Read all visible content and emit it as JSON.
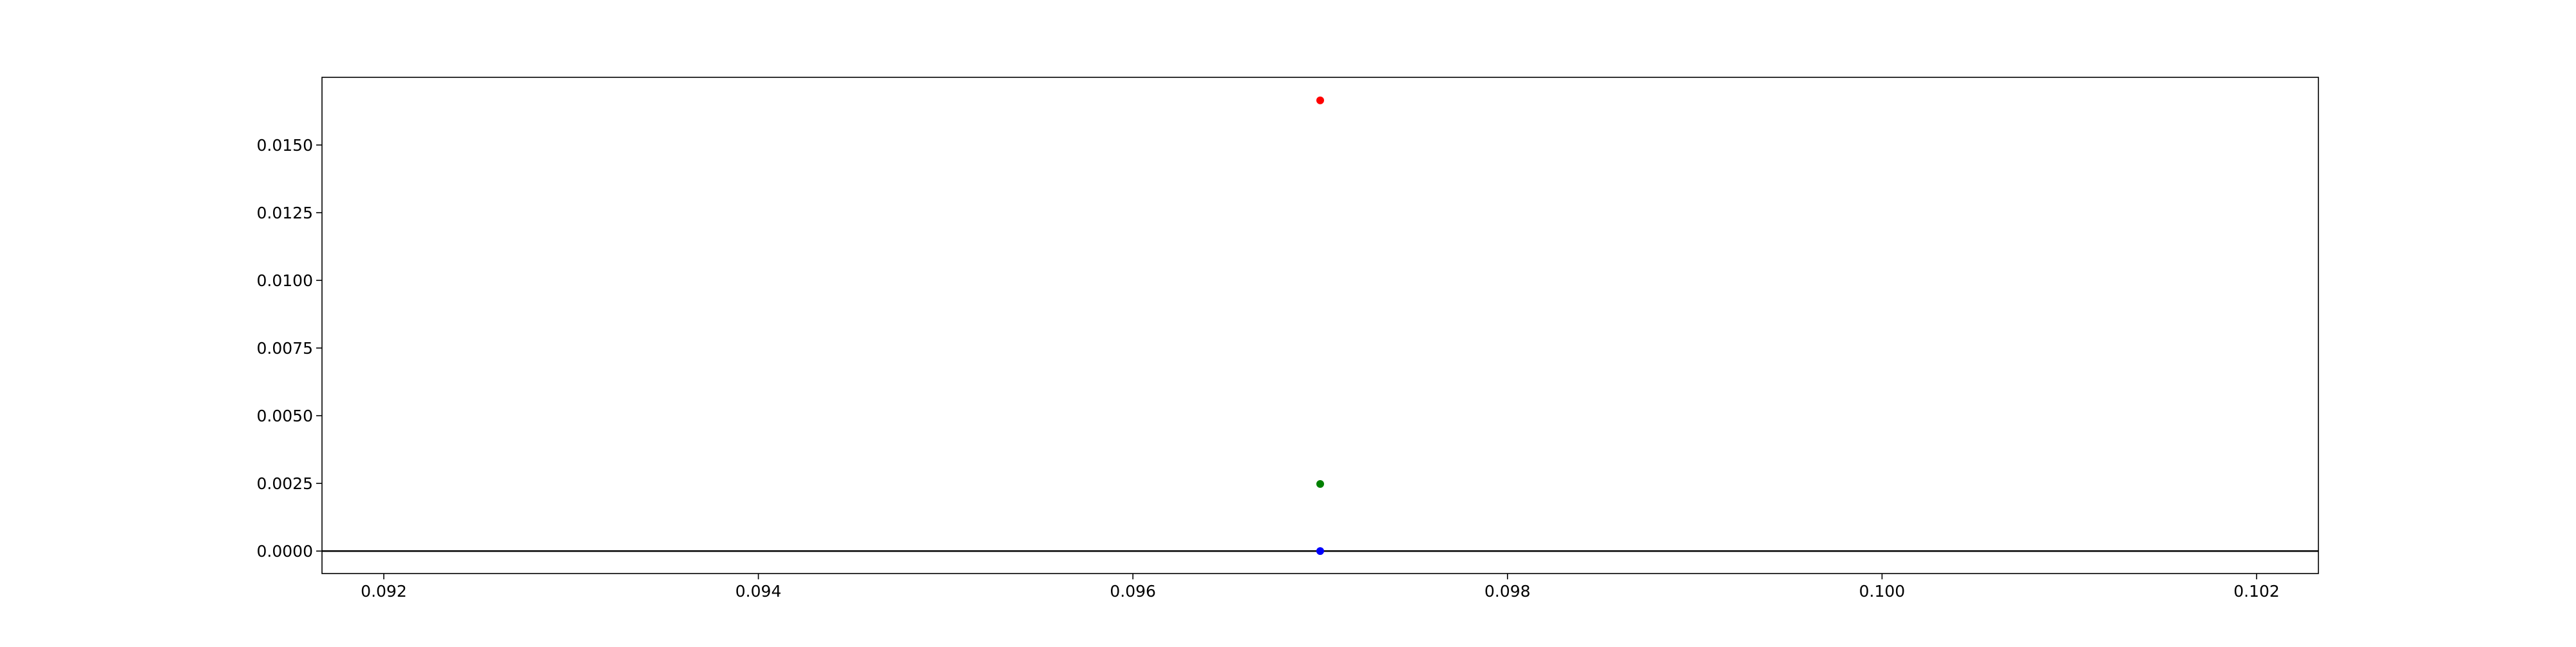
{
  "chart_data": {
    "type": "scatter",
    "title": "",
    "xlabel": "",
    "ylabel": "",
    "xlim": [
      0.09167,
      0.10233
    ],
    "ylim": [
      -0.00083,
      0.0175
    ],
    "x_ticks": [
      0.092,
      0.094,
      0.096,
      0.098,
      0.1,
      0.102
    ],
    "x_tick_labels": [
      "0.092",
      "0.094",
      "0.096",
      "0.098",
      "0.100",
      "0.102"
    ],
    "y_ticks": [
      0.0,
      0.0025,
      0.005,
      0.0075,
      0.01,
      0.0125,
      0.015
    ],
    "y_tick_labels": [
      "0.0000",
      "0.0025",
      "0.0050",
      "0.0075",
      "0.0100",
      "0.0125",
      "0.0150"
    ],
    "grid": false,
    "legend": "none",
    "reference_lines": [
      {
        "orientation": "horizontal",
        "y": 0.0,
        "color": "#000000"
      }
    ],
    "series": [
      {
        "color": "#ff0000",
        "points": [
          {
            "x": 0.097,
            "y": 0.01665
          }
        ]
      },
      {
        "color": "#008000",
        "points": [
          {
            "x": 0.097,
            "y": 0.00248
          }
        ]
      },
      {
        "color": "#0000ff",
        "points": [
          {
            "x": 0.097,
            "y": 0.0
          }
        ]
      }
    ]
  }
}
